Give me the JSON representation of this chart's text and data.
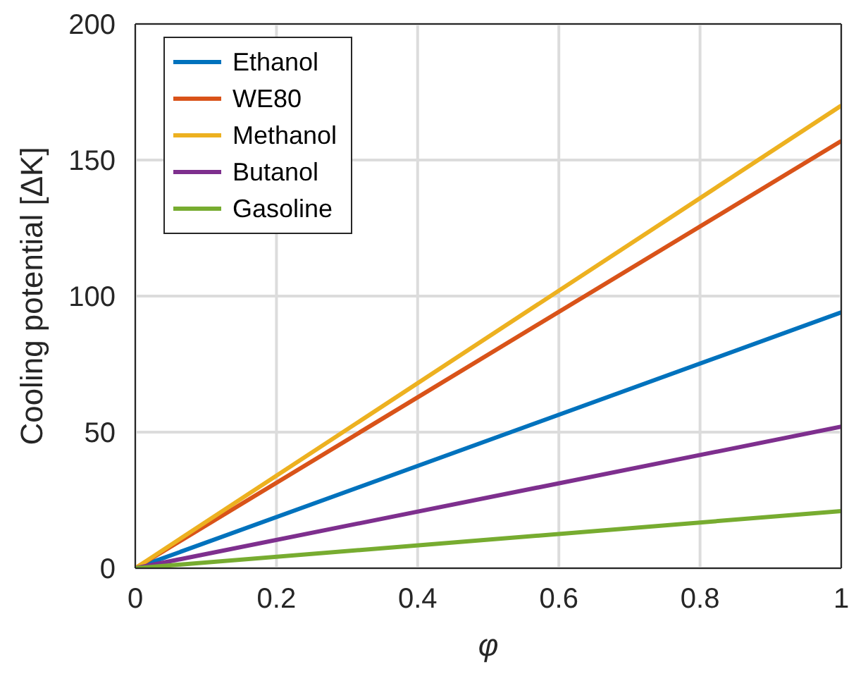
{
  "chart_data": {
    "type": "line",
    "xlabel": "φ",
    "ylabel": "Cooling potential [ΔK]",
    "x": [
      0,
      1
    ],
    "series": [
      {
        "name": "Ethanol",
        "color": "#0072bd",
        "values": [
          0,
          94
        ]
      },
      {
        "name": "WE80",
        "color": "#d95319",
        "values": [
          0,
          157
        ]
      },
      {
        "name": "Methanol",
        "color": "#edb120",
        "values": [
          0,
          170
        ]
      },
      {
        "name": "Butanol",
        "color": "#7e2f8e",
        "values": [
          0,
          52
        ]
      },
      {
        "name": "Gasoline",
        "color": "#77ac30",
        "values": [
          0,
          21
        ]
      }
    ],
    "xlim": [
      0,
      1
    ],
    "xticks": [
      0,
      0.2,
      0.4,
      0.6,
      0.8,
      1
    ],
    "ylim": [
      0,
      200
    ],
    "yticks": [
      0,
      50,
      100,
      150,
      200
    ],
    "grid": true,
    "legend": "top left",
    "marker": "none",
    "line_style": "solid"
  }
}
